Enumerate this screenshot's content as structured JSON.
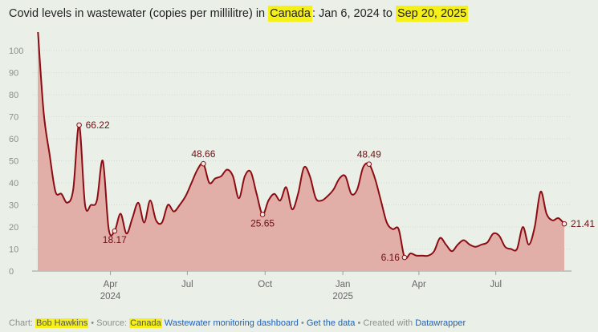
{
  "title": {
    "part1": "Covid levels in wastewater (copies per millilitre) in ",
    "place": "Canada",
    "part2": ": Jan 6, 2024 to ",
    "end_date": "Sep 20, 2025"
  },
  "footer": {
    "chart_prefix": "Chart: ",
    "author": "Bob Hawkins",
    "source_prefix": " • Source: ",
    "source_place": "Canada",
    "source_link": "Wastewater monitoring dashboard",
    "sep1": " • ",
    "get_data": "Get the data",
    "created_prefix": " • Created with ",
    "tool": "Datawrapper"
  },
  "colors": {
    "line": "#8b0c12",
    "area": "#e2aea8",
    "highlight": "#f5ef1a",
    "link": "#1d5fb8"
  },
  "chart_data": {
    "type": "area",
    "ylim": [
      0,
      100
    ],
    "y_ticks": [
      0,
      10,
      20,
      30,
      40,
      50,
      60,
      70,
      80,
      90,
      100
    ],
    "x_range": [
      "2024-01-06",
      "2025-09-20"
    ],
    "x_ticks": [
      {
        "date": "2024-04-01",
        "label": "Apr",
        "sub": "2024"
      },
      {
        "date": "2024-07-01",
        "label": "Jul",
        "sub": ""
      },
      {
        "date": "2024-10-01",
        "label": "Oct",
        "sub": ""
      },
      {
        "date": "2025-01-01",
        "label": "Jan",
        "sub": "2025"
      },
      {
        "date": "2025-04-01",
        "label": "Apr",
        "sub": ""
      },
      {
        "date": "2025-07-01",
        "label": "Jul",
        "sub": ""
      }
    ],
    "series": [
      {
        "points": [
          [
            "2024-01-06",
            110
          ],
          [
            "2024-01-13",
            72
          ],
          [
            "2024-01-20",
            53
          ],
          [
            "2024-01-27",
            36
          ],
          [
            "2024-02-03",
            35
          ],
          [
            "2024-02-10",
            31
          ],
          [
            "2024-02-17",
            37
          ],
          [
            "2024-02-24",
            66.22
          ],
          [
            "2024-03-02",
            30
          ],
          [
            "2024-03-09",
            30
          ],
          [
            "2024-03-16",
            32
          ],
          [
            "2024-03-23",
            50
          ],
          [
            "2024-03-30",
            19
          ],
          [
            "2024-04-06",
            18.17
          ],
          [
            "2024-04-13",
            26
          ],
          [
            "2024-04-20",
            17
          ],
          [
            "2024-04-27",
            24
          ],
          [
            "2024-05-04",
            31
          ],
          [
            "2024-05-11",
            22
          ],
          [
            "2024-05-18",
            32
          ],
          [
            "2024-05-25",
            23
          ],
          [
            "2024-06-01",
            22
          ],
          [
            "2024-06-08",
            30
          ],
          [
            "2024-06-15",
            27
          ],
          [
            "2024-06-22",
            30
          ],
          [
            "2024-06-29",
            34
          ],
          [
            "2024-07-06",
            40
          ],
          [
            "2024-07-13",
            46
          ],
          [
            "2024-07-20",
            48.66
          ],
          [
            "2024-07-27",
            40
          ],
          [
            "2024-08-03",
            42
          ],
          [
            "2024-08-10",
            43
          ],
          [
            "2024-08-17",
            46
          ],
          [
            "2024-08-24",
            43
          ],
          [
            "2024-08-31",
            33
          ],
          [
            "2024-09-07",
            43
          ],
          [
            "2024-09-14",
            45
          ],
          [
            "2024-09-21",
            35
          ],
          [
            "2024-09-28",
            25.65
          ],
          [
            "2024-10-05",
            32
          ],
          [
            "2024-10-12",
            35
          ],
          [
            "2024-10-19",
            32
          ],
          [
            "2024-10-26",
            38
          ],
          [
            "2024-11-02",
            28
          ],
          [
            "2024-11-09",
            35
          ],
          [
            "2024-11-16",
            47
          ],
          [
            "2024-11-23",
            43
          ],
          [
            "2024-11-30",
            33
          ],
          [
            "2024-12-07",
            32
          ],
          [
            "2024-12-14",
            34
          ],
          [
            "2024-12-21",
            37
          ],
          [
            "2024-12-28",
            42
          ],
          [
            "2025-01-04",
            43
          ],
          [
            "2025-01-11",
            35
          ],
          [
            "2025-01-18",
            37
          ],
          [
            "2025-01-25",
            47
          ],
          [
            "2025-02-01",
            48.49
          ],
          [
            "2025-02-08",
            42
          ],
          [
            "2025-02-15",
            32
          ],
          [
            "2025-02-22",
            22
          ],
          [
            "2025-03-01",
            19
          ],
          [
            "2025-03-08",
            19
          ],
          [
            "2025-03-15",
            6.16
          ],
          [
            "2025-03-22",
            8
          ],
          [
            "2025-03-29",
            7
          ],
          [
            "2025-04-05",
            7
          ],
          [
            "2025-04-12",
            7
          ],
          [
            "2025-04-19",
            9
          ],
          [
            "2025-04-26",
            15
          ],
          [
            "2025-05-03",
            12
          ],
          [
            "2025-05-10",
            9
          ],
          [
            "2025-05-17",
            12
          ],
          [
            "2025-05-24",
            14
          ],
          [
            "2025-05-31",
            12
          ],
          [
            "2025-06-07",
            11
          ],
          [
            "2025-06-14",
            12
          ],
          [
            "2025-06-21",
            13
          ],
          [
            "2025-06-28",
            17
          ],
          [
            "2025-07-05",
            16
          ],
          [
            "2025-07-12",
            11
          ],
          [
            "2025-07-19",
            10
          ],
          [
            "2025-07-26",
            10
          ],
          [
            "2025-08-02",
            20
          ],
          [
            "2025-08-09",
            12
          ],
          [
            "2025-08-16",
            20
          ],
          [
            "2025-08-23",
            36
          ],
          [
            "2025-08-30",
            26
          ],
          [
            "2025-09-06",
            23
          ],
          [
            "2025-09-13",
            24
          ],
          [
            "2025-09-20",
            21.41
          ]
        ]
      }
    ],
    "annotations": [
      {
        "date": "2024-02-24",
        "value": 66.22,
        "label": "66.22",
        "pos": "right"
      },
      {
        "date": "2024-04-06",
        "value": 18.17,
        "label": "18.17",
        "pos": "below"
      },
      {
        "date": "2024-07-20",
        "value": 48.66,
        "label": "48.66",
        "pos": "above"
      },
      {
        "date": "2024-09-28",
        "value": 25.65,
        "label": "25.65",
        "pos": "below"
      },
      {
        "date": "2025-02-01",
        "value": 48.49,
        "label": "48.49",
        "pos": "above"
      },
      {
        "date": "2025-03-15",
        "value": 6.16,
        "label": "6.16",
        "pos": "left"
      },
      {
        "date": "2025-09-20",
        "value": 21.41,
        "label": "21.41",
        "pos": "right"
      }
    ]
  }
}
